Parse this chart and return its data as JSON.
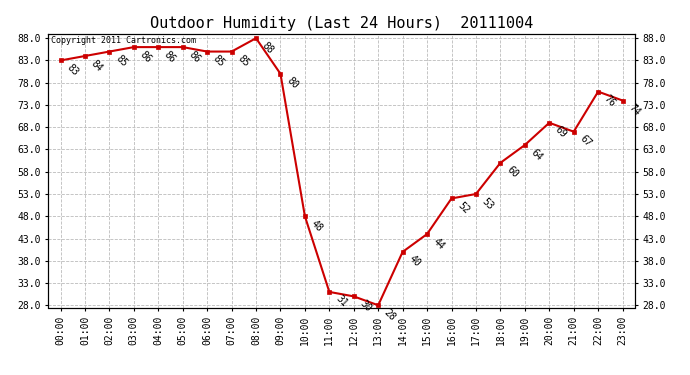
{
  "title": "Outdoor Humidity (Last 24 Hours)  20111004",
  "copyright_text": "Copyright 2011 Cartronics.com",
  "hours": [
    0,
    1,
    2,
    3,
    4,
    5,
    6,
    7,
    8,
    9,
    10,
    11,
    12,
    13,
    14,
    15,
    16,
    17,
    18,
    19,
    20,
    21,
    22,
    23
  ],
  "x_labels": [
    "00:00",
    "01:00",
    "02:00",
    "03:00",
    "04:00",
    "05:00",
    "06:00",
    "07:00",
    "08:00",
    "09:00",
    "10:00",
    "11:00",
    "12:00",
    "13:00",
    "14:00",
    "15:00",
    "16:00",
    "17:00",
    "18:00",
    "19:00",
    "20:00",
    "21:00",
    "22:00",
    "23:00"
  ],
  "values": [
    83,
    84,
    85,
    86,
    86,
    86,
    85,
    85,
    88,
    80,
    48,
    31,
    30,
    28,
    40,
    44,
    52,
    53,
    60,
    64,
    69,
    67,
    76,
    74
  ],
  "line_color": "#cc0000",
  "marker_color": "#cc0000",
  "bg_color": "#ffffff",
  "grid_color": "#bbbbbb",
  "ylim_min": 27.5,
  "ylim_max": 89.0,
  "yticks": [
    28.0,
    33.0,
    38.0,
    43.0,
    48.0,
    53.0,
    58.0,
    63.0,
    68.0,
    73.0,
    78.0,
    83.0,
    88.0
  ],
  "title_fontsize": 11,
  "label_fontsize": 7,
  "annotation_fontsize": 7,
  "marker_size": 3.5,
  "linewidth": 1.5
}
